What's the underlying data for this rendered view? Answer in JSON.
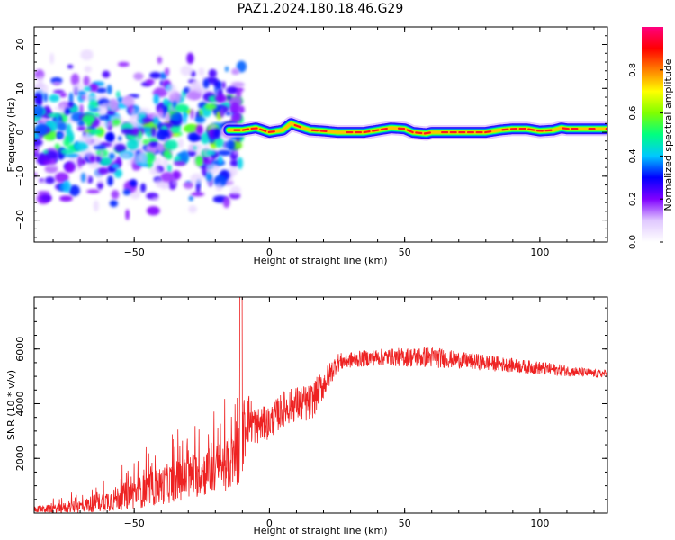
{
  "title": "PAZ1.2024.180.18.46.G29",
  "chart_data": [
    {
      "type": "heatmap",
      "xlabel": "Height of straight line (km)",
      "ylabel": "Frequency (Hz)",
      "xlim": [
        -87,
        125
      ],
      "ylim": [
        -25,
        24
      ],
      "xticks": [
        -50,
        0,
        50,
        100
      ],
      "yticks": [
        -20,
        -10,
        0,
        10,
        20
      ],
      "colorbar": {
        "label": "Normalized spectral amplitude",
        "ticks": [
          0.0,
          0.2,
          0.4,
          0.6,
          0.8
        ],
        "range": [
          0,
          1
        ],
        "colormap": [
          "#ffffff",
          "#e0c8ff",
          "#8000ff",
          "#0000ff",
          "#00c8ff",
          "#00ff80",
          "#80ff00",
          "#ffff00",
          "#ff8000",
          "#ff0000",
          "#ff0080"
        ]
      },
      "ridge": {
        "x": [
          -15,
          -10,
          -5,
          0,
          5,
          8,
          10,
          15,
          20,
          25,
          30,
          35,
          40,
          45,
          50,
          53,
          58,
          60,
          65,
          70,
          75,
          80,
          85,
          90,
          95,
          100,
          105,
          108,
          110,
          115,
          120,
          125
        ],
        "y": [
          0.5,
          0.5,
          1.0,
          0.0,
          0.5,
          2.0,
          1.5,
          0.5,
          0.3,
          0.0,
          0.0,
          0.0,
          0.5,
          1.0,
          0.8,
          0.0,
          -0.3,
          0.0,
          0.0,
          0.0,
          0.0,
          0.0,
          0.5,
          0.8,
          0.8,
          0.3,
          0.5,
          1.0,
          0.8,
          0.8,
          0.8,
          0.8
        ]
      },
      "scatter_region": {
        "x": [
          -87,
          -10
        ],
        "y": [
          -20,
          20
        ]
      }
    },
    {
      "type": "line",
      "xlabel": "Height of straight line (km)",
      "ylabel": "SNR (10 * v/v)",
      "xlim": [
        -87,
        125
      ],
      "ylim": [
        0,
        7900
      ],
      "xticks": [
        -50,
        0,
        50,
        100
      ],
      "yticks": [
        2000,
        4000,
        6000
      ],
      "color": "#ee2222",
      "envelope": {
        "x": [
          -87,
          -80,
          -70,
          -60,
          -50,
          -40,
          -30,
          -20,
          -12,
          -10,
          -8,
          -5,
          0,
          5,
          10,
          15,
          20,
          25,
          30,
          40,
          50,
          60,
          70,
          80,
          90,
          100,
          110,
          120,
          125
        ],
        "mean": [
          150,
          150,
          250,
          450,
          700,
          1000,
          1300,
          1600,
          1900,
          2800,
          3500,
          3200,
          3300,
          3800,
          4000,
          4000,
          4700,
          5500,
          5600,
          5700,
          5700,
          5700,
          5600,
          5500,
          5400,
          5300,
          5200,
          5100,
          5100
        ],
        "noise": [
          120,
          150,
          250,
          400,
          550,
          700,
          800,
          900,
          1000,
          1400,
          1000,
          700,
          600,
          650,
          650,
          700,
          550,
          350,
          300,
          300,
          350,
          400,
          300,
          300,
          250,
          250,
          200,
          150,
          150
        ]
      }
    }
  ]
}
